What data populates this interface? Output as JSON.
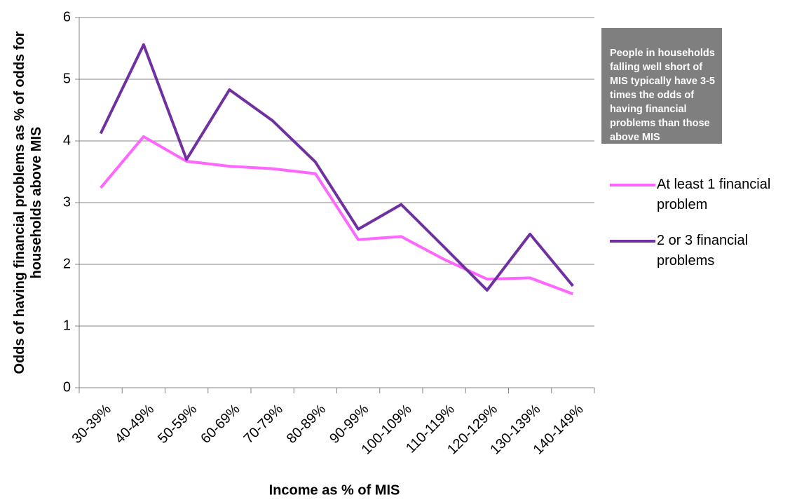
{
  "chart_data": {
    "type": "line",
    "x_label": "Income as % of MIS",
    "y_label": "Odds of  having financial problems as % of odds for households above MIS",
    "annotation": "People in households falling well short of MIS typically have 3-5 times the odds of having financial problems than those above MIS",
    "categories": [
      "30-39%",
      "40-49%",
      "50-59%",
      "60-69%",
      "70-79%",
      "80-89%",
      "90-99%",
      "100-109%",
      "110-119%",
      "120-129%",
      "130-139%",
      "140-149%"
    ],
    "series": [
      {
        "name": "At least 1 financial problem",
        "color": "#ff66ff",
        "values": [
          3.24,
          4.07,
          3.67,
          3.59,
          3.55,
          3.47,
          2.4,
          2.45,
          2.08,
          1.76,
          1.78,
          1.52
        ]
      },
      {
        "name": "2 or 3 financial problems",
        "color": "#7030a0",
        "values": [
          4.12,
          5.56,
          3.7,
          4.83,
          4.33,
          3.66,
          2.57,
          2.97,
          2.28,
          1.58,
          2.49,
          1.65
        ]
      }
    ],
    "ylim": [
      0,
      6
    ],
    "yticks": [
      0,
      1,
      2,
      3,
      4,
      5,
      6
    ],
    "grid": true
  }
}
